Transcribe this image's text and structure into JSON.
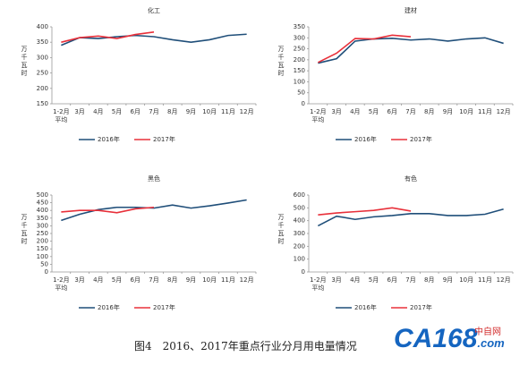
{
  "chart_data": [
    {
      "type": "line",
      "title": "化工",
      "ylabel": "万千瓦时",
      "categories": [
        "1-2月\n平均",
        "3月",
        "4月",
        "5月",
        "6月",
        "7月",
        "8月",
        "9月",
        "10月",
        "11月",
        "12月"
      ],
      "series": [
        {
          "name": "2016年",
          "color": "#1f4e79",
          "values": [
            340,
            365,
            362,
            368,
            372,
            368,
            358,
            350,
            358,
            372,
            376
          ]
        },
        {
          "name": "2017年",
          "color": "#e8303a",
          "values": [
            350,
            365,
            370,
            362,
            375,
            383,
            null,
            null,
            null,
            null,
            null
          ]
        }
      ],
      "ylim": [
        150,
        400
      ],
      "yticks": [
        150,
        200,
        250,
        300,
        350,
        400
      ],
      "legend": "bottom"
    },
    {
      "type": "line",
      "title": "建材",
      "ylabel": "万千瓦时",
      "categories": [
        "1-2月\n平均",
        "3月",
        "4月",
        "5月",
        "6月",
        "7月",
        "8月",
        "9月",
        "10月",
        "11月",
        "12月"
      ],
      "series": [
        {
          "name": "2016年",
          "color": "#1f4e79",
          "values": [
            185,
            205,
            285,
            295,
            298,
            290,
            295,
            285,
            295,
            300,
            275
          ]
        },
        {
          "name": "2017年",
          "color": "#e8303a",
          "values": [
            188,
            230,
            297,
            295,
            312,
            305,
            null,
            null,
            null,
            null,
            null
          ]
        }
      ],
      "ylim": [
        0,
        350
      ],
      "yticks": [
        0,
        50,
        100,
        150,
        200,
        250,
        300,
        350
      ],
      "legend": "bottom"
    },
    {
      "type": "line",
      "title": "黑色",
      "ylabel": "万千瓦时",
      "categories": [
        "1-2月\n平均",
        "3月",
        "4月",
        "5月",
        "6月",
        "7月",
        "8月",
        "9月",
        "10月",
        "11月",
        "12月"
      ],
      "series": [
        {
          "name": "2016年",
          "color": "#1f4e79",
          "values": [
            335,
            375,
            405,
            420,
            420,
            415,
            435,
            415,
            430,
            448,
            468
          ]
        },
        {
          "name": "2017年",
          "color": "#e8303a",
          "values": [
            390,
            400,
            400,
            385,
            410,
            420,
            null,
            null,
            null,
            null,
            null
          ]
        }
      ],
      "ylim": [
        0,
        500
      ],
      "yticks": [
        0,
        50,
        100,
        150,
        200,
        250,
        300,
        350,
        400,
        450,
        500
      ],
      "legend": "bottom"
    },
    {
      "type": "line",
      "title": "有色",
      "ylabel": "万千瓦时",
      "categories": [
        "1-2月\n平均",
        "3月",
        "4月",
        "5月",
        "6月",
        "7月",
        "8月",
        "9月",
        "10月",
        "11月",
        "12月"
      ],
      "series": [
        {
          "name": "2016年",
          "color": "#1f4e79",
          "values": [
            360,
            435,
            410,
            430,
            440,
            455,
            455,
            440,
            440,
            450,
            490
          ]
        },
        {
          "name": "2017年",
          "color": "#e8303a",
          "values": [
            445,
            460,
            470,
            480,
            500,
            475,
            null,
            null,
            null,
            null,
            null
          ]
        }
      ],
      "ylim": [
        0,
        600
      ],
      "yticks": [
        0,
        100,
        200,
        300,
        400,
        500,
        600
      ],
      "legend": "bottom"
    }
  ],
  "caption": "图4　2016、2017年重点行业分月用电量情况",
  "watermark": {
    "logo": "CA168",
    "domain": ".com",
    "site": "中自网"
  }
}
